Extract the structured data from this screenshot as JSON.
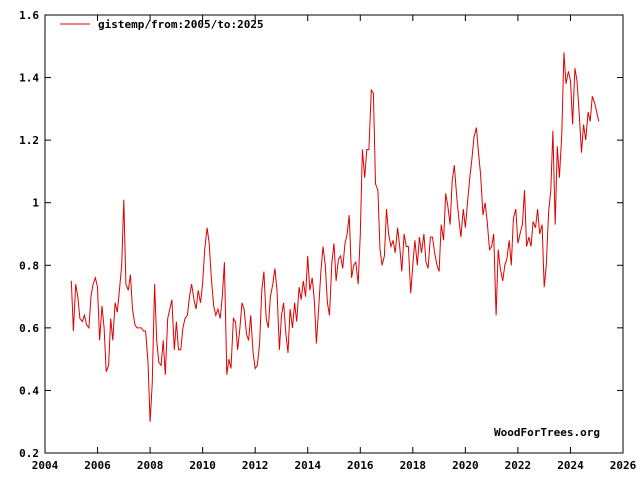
{
  "chart_data": {
    "type": "line",
    "legend": {
      "label": "gistemp/from:2005/to:2025",
      "position": "top-left",
      "color": "#e00000"
    },
    "credit": "WoodForTrees.org",
    "xlim": [
      2004,
      2026
    ],
    "ylim": [
      0.2,
      1.6
    ],
    "x_ticks": [
      2004,
      2006,
      2008,
      2010,
      2012,
      2014,
      2016,
      2018,
      2020,
      2022,
      2024,
      2026
    ],
    "y_ticks": [
      0.2,
      0.4,
      0.6,
      0.8,
      1.0,
      1.2,
      1.4,
      1.6
    ],
    "x_tick_labels": [
      "2004",
      "2006",
      "2008",
      "2010",
      "2012",
      "2014",
      "2016",
      "2018",
      "2020",
      "2022",
      "2024",
      "2026"
    ],
    "y_tick_labels": [
      "0.2",
      "0.4",
      "0.6",
      "0.8",
      "1",
      "1.2",
      "1.4",
      "1.6"
    ],
    "grid": false,
    "series": [
      {
        "name": "gistemp/from:2005/to:2025",
        "color": "#e00000",
        "values": [
          [
            2005.0,
            0.75
          ],
          [
            2005.08,
            0.59
          ],
          [
            2005.17,
            0.74
          ],
          [
            2005.25,
            0.7
          ],
          [
            2005.33,
            0.63
          ],
          [
            2005.42,
            0.62
          ],
          [
            2005.5,
            0.64
          ],
          [
            2005.58,
            0.61
          ],
          [
            2005.67,
            0.6
          ],
          [
            2005.75,
            0.7
          ],
          [
            2005.83,
            0.74
          ],
          [
            2005.92,
            0.76
          ],
          [
            2006.0,
            0.73
          ],
          [
            2006.08,
            0.56
          ],
          [
            2006.17,
            0.67
          ],
          [
            2006.25,
            0.6
          ],
          [
            2006.33,
            0.46
          ],
          [
            2006.42,
            0.48
          ],
          [
            2006.5,
            0.63
          ],
          [
            2006.58,
            0.56
          ],
          [
            2006.67,
            0.68
          ],
          [
            2006.75,
            0.65
          ],
          [
            2006.83,
            0.72
          ],
          [
            2006.92,
            0.8
          ],
          [
            2007.0,
            1.01
          ],
          [
            2007.08,
            0.74
          ],
          [
            2007.17,
            0.72
          ],
          [
            2007.25,
            0.77
          ],
          [
            2007.33,
            0.66
          ],
          [
            2007.42,
            0.61
          ],
          [
            2007.5,
            0.6
          ],
          [
            2007.58,
            0.6
          ],
          [
            2007.67,
            0.6
          ],
          [
            2007.75,
            0.59
          ],
          [
            2007.83,
            0.59
          ],
          [
            2007.92,
            0.49
          ],
          [
            2008.0,
            0.3
          ],
          [
            2008.08,
            0.42
          ],
          [
            2008.17,
            0.74
          ],
          [
            2008.25,
            0.56
          ],
          [
            2008.33,
            0.49
          ],
          [
            2008.42,
            0.48
          ],
          [
            2008.5,
            0.56
          ],
          [
            2008.58,
            0.45
          ],
          [
            2008.67,
            0.63
          ],
          [
            2008.75,
            0.66
          ],
          [
            2008.83,
            0.69
          ],
          [
            2008.92,
            0.53
          ],
          [
            2009.0,
            0.62
          ],
          [
            2009.08,
            0.53
          ],
          [
            2009.17,
            0.53
          ],
          [
            2009.25,
            0.6
          ],
          [
            2009.33,
            0.63
          ],
          [
            2009.42,
            0.64
          ],
          [
            2009.5,
            0.7
          ],
          [
            2009.58,
            0.74
          ],
          [
            2009.67,
            0.69
          ],
          [
            2009.75,
            0.66
          ],
          [
            2009.83,
            0.72
          ],
          [
            2009.92,
            0.68
          ],
          [
            2010.0,
            0.74
          ],
          [
            2010.08,
            0.85
          ],
          [
            2010.17,
            0.92
          ],
          [
            2010.25,
            0.87
          ],
          [
            2010.33,
            0.76
          ],
          [
            2010.42,
            0.67
          ],
          [
            2010.5,
            0.64
          ],
          [
            2010.58,
            0.66
          ],
          [
            2010.67,
            0.63
          ],
          [
            2010.75,
            0.7
          ],
          [
            2010.83,
            0.81
          ],
          [
            2010.92,
            0.45
          ],
          [
            2011.0,
            0.5
          ],
          [
            2011.08,
            0.47
          ],
          [
            2011.17,
            0.63
          ],
          [
            2011.25,
            0.62
          ],
          [
            2011.33,
            0.53
          ],
          [
            2011.42,
            0.6
          ],
          [
            2011.5,
            0.68
          ],
          [
            2011.58,
            0.66
          ],
          [
            2011.67,
            0.58
          ],
          [
            2011.75,
            0.56
          ],
          [
            2011.83,
            0.64
          ],
          [
            2011.92,
            0.52
          ],
          [
            2012.0,
            0.47
          ],
          [
            2012.08,
            0.48
          ],
          [
            2012.17,
            0.55
          ],
          [
            2012.25,
            0.72
          ],
          [
            2012.33,
            0.78
          ],
          [
            2012.42,
            0.63
          ],
          [
            2012.5,
            0.6
          ],
          [
            2012.58,
            0.7
          ],
          [
            2012.67,
            0.74
          ],
          [
            2012.75,
            0.79
          ],
          [
            2012.83,
            0.72
          ],
          [
            2012.92,
            0.53
          ],
          [
            2013.0,
            0.64
          ],
          [
            2013.08,
            0.68
          ],
          [
            2013.17,
            0.58
          ],
          [
            2013.25,
            0.52
          ],
          [
            2013.33,
            0.66
          ],
          [
            2013.42,
            0.6
          ],
          [
            2013.5,
            0.68
          ],
          [
            2013.58,
            0.62
          ],
          [
            2013.67,
            0.73
          ],
          [
            2013.75,
            0.69
          ],
          [
            2013.83,
            0.75
          ],
          [
            2013.92,
            0.7
          ],
          [
            2014.0,
            0.83
          ],
          [
            2014.08,
            0.72
          ],
          [
            2014.17,
            0.76
          ],
          [
            2014.25,
            0.69
          ],
          [
            2014.33,
            0.55
          ],
          [
            2014.42,
            0.67
          ],
          [
            2014.5,
            0.78
          ],
          [
            2014.58,
            0.86
          ],
          [
            2014.67,
            0.8
          ],
          [
            2014.75,
            0.68
          ],
          [
            2014.83,
            0.64
          ],
          [
            2014.92,
            0.81
          ],
          [
            2015.0,
            0.87
          ],
          [
            2015.08,
            0.75
          ],
          [
            2015.17,
            0.82
          ],
          [
            2015.25,
            0.83
          ],
          [
            2015.33,
            0.79
          ],
          [
            2015.42,
            0.87
          ],
          [
            2015.5,
            0.9
          ],
          [
            2015.58,
            0.96
          ],
          [
            2015.67,
            0.76
          ],
          [
            2015.75,
            0.8
          ],
          [
            2015.83,
            0.81
          ],
          [
            2015.92,
            0.74
          ],
          [
            2016.0,
            0.9
          ],
          [
            2016.08,
            1.17
          ],
          [
            2016.17,
            1.08
          ],
          [
            2016.25,
            1.17
          ],
          [
            2016.33,
            1.17
          ],
          [
            2016.42,
            1.36
          ],
          [
            2016.5,
            1.35
          ],
          [
            2016.58,
            1.06
          ],
          [
            2016.67,
            1.04
          ],
          [
            2016.75,
            0.85
          ],
          [
            2016.83,
            0.8
          ],
          [
            2016.92,
            0.83
          ],
          [
            2017.0,
            0.98
          ],
          [
            2017.08,
            0.9
          ],
          [
            2017.17,
            0.86
          ],
          [
            2017.25,
            0.88
          ],
          [
            2017.33,
            0.84
          ],
          [
            2017.42,
            0.92
          ],
          [
            2017.5,
            0.86
          ],
          [
            2017.58,
            0.78
          ],
          [
            2017.67,
            0.9
          ],
          [
            2017.75,
            0.86
          ],
          [
            2017.83,
            0.86
          ],
          [
            2017.92,
            0.71
          ],
          [
            2018.0,
            0.8
          ],
          [
            2018.08,
            0.88
          ],
          [
            2018.17,
            0.8
          ],
          [
            2018.25,
            0.89
          ],
          [
            2018.33,
            0.84
          ],
          [
            2018.42,
            0.9
          ],
          [
            2018.5,
            0.81
          ],
          [
            2018.58,
            0.79
          ],
          [
            2018.67,
            0.89
          ],
          [
            2018.75,
            0.89
          ],
          [
            2018.83,
            0.84
          ],
          [
            2018.92,
            0.8
          ],
          [
            2019.0,
            0.78
          ],
          [
            2019.08,
            0.93
          ],
          [
            2019.17,
            0.88
          ],
          [
            2019.25,
            1.03
          ],
          [
            2019.33,
            0.99
          ],
          [
            2019.42,
            0.93
          ],
          [
            2019.5,
            1.07
          ],
          [
            2019.58,
            1.12
          ],
          [
            2019.67,
            1.02
          ],
          [
            2019.75,
            0.95
          ],
          [
            2019.83,
            0.89
          ],
          [
            2019.92,
            0.98
          ],
          [
            2020.0,
            0.92
          ],
          [
            2020.08,
            1.0
          ],
          [
            2020.17,
            1.08
          ],
          [
            2020.25,
            1.14
          ],
          [
            2020.33,
            1.21
          ],
          [
            2020.42,
            1.24
          ],
          [
            2020.5,
            1.16
          ],
          [
            2020.58,
            1.09
          ],
          [
            2020.67,
            0.96
          ],
          [
            2020.75,
            1.0
          ],
          [
            2020.83,
            0.94
          ],
          [
            2020.92,
            0.85
          ],
          [
            2021.0,
            0.86
          ],
          [
            2021.08,
            0.9
          ],
          [
            2021.17,
            0.64
          ],
          [
            2021.25,
            0.85
          ],
          [
            2021.33,
            0.79
          ],
          [
            2021.42,
            0.75
          ],
          [
            2021.5,
            0.8
          ],
          [
            2021.58,
            0.82
          ],
          [
            2021.67,
            0.88
          ],
          [
            2021.75,
            0.8
          ],
          [
            2021.83,
            0.95
          ],
          [
            2021.92,
            0.98
          ],
          [
            2022.0,
            0.87
          ],
          [
            2022.08,
            0.9
          ],
          [
            2022.17,
            0.93
          ],
          [
            2022.25,
            1.04
          ],
          [
            2022.33,
            0.86
          ],
          [
            2022.42,
            0.89
          ],
          [
            2022.5,
            0.86
          ],
          [
            2022.58,
            0.94
          ],
          [
            2022.67,
            0.92
          ],
          [
            2022.75,
            0.98
          ],
          [
            2022.83,
            0.9
          ],
          [
            2022.92,
            0.93
          ],
          [
            2023.0,
            0.73
          ],
          [
            2023.08,
            0.8
          ],
          [
            2023.17,
            0.97
          ],
          [
            2023.25,
            1.04
          ],
          [
            2023.33,
            1.23
          ],
          [
            2023.42,
            0.93
          ],
          [
            2023.5,
            1.18
          ],
          [
            2023.58,
            1.08
          ],
          [
            2023.67,
            1.22
          ],
          [
            2023.75,
            1.48
          ],
          [
            2023.83,
            1.38
          ],
          [
            2023.92,
            1.42
          ],
          [
            2024.0,
            1.39
          ],
          [
            2024.08,
            1.25
          ],
          [
            2024.17,
            1.43
          ],
          [
            2024.25,
            1.39
          ],
          [
            2024.33,
            1.29
          ],
          [
            2024.42,
            1.16
          ],
          [
            2024.5,
            1.25
          ],
          [
            2024.58,
            1.2
          ],
          [
            2024.67,
            1.29
          ],
          [
            2024.75,
            1.26
          ],
          [
            2024.83,
            1.34
          ],
          [
            2024.92,
            1.32
          ],
          [
            2025.0,
            1.29
          ],
          [
            2025.08,
            1.26
          ]
        ]
      }
    ]
  }
}
